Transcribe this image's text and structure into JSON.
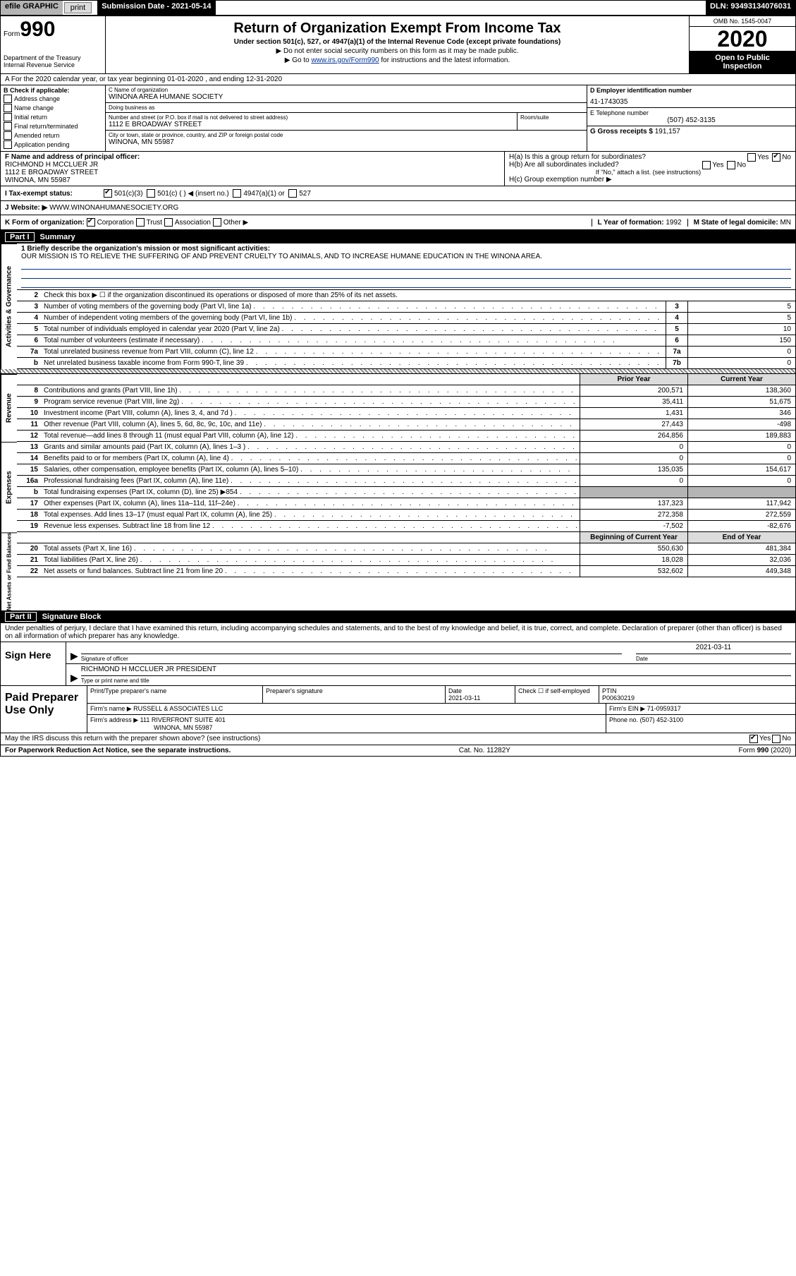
{
  "topbar": {
    "efile": "efile GRAPHIC",
    "print": "print",
    "subdate_label": "Submission Date - 2021-05-14",
    "dln": "DLN: 93493134076031"
  },
  "header": {
    "form_prefix": "Form",
    "form_no": "990",
    "title": "Return of Organization Exempt From Income Tax",
    "sub1": "Under section 501(c), 527, or 4947(a)(1) of the Internal Revenue Code (except private foundations)",
    "sub2": "▶ Do not enter social security numbers on this form as it may be made public.",
    "sub3_prefix": "▶ Go to ",
    "sub3_link": "www.irs.gov/Form990",
    "sub3_suffix": " for instructions and the latest information.",
    "dept1": "Department of the Treasury",
    "dept2": "Internal Revenue Service",
    "omb": "OMB No. 1545-0047",
    "year": "2020",
    "inspect1": "Open to Public",
    "inspect2": "Inspection"
  },
  "row_a": "A For the 2020 calendar year, or tax year beginning 01-01-2020    , and ending 12-31-2020",
  "block_b": {
    "label": "B Check if applicable:",
    "opts": [
      "Address change",
      "Name change",
      "Initial return",
      "Final return/terminated",
      "Amended return",
      "Application pending"
    ]
  },
  "block_c": {
    "name_lbl": "C Name of organization",
    "name": "WINONA AREA HUMANE SOCIETY",
    "dba_lbl": "Doing business as",
    "dba": "",
    "addr_lbl": "Number and street (or P.O. box if mail is not delivered to street address)",
    "addr": "1112 E BROADWAY STREET",
    "room_lbl": "Room/suite",
    "room": "",
    "city_lbl": "City or town, state or province, country, and ZIP or foreign postal code",
    "city": "WINONA, MN  55987"
  },
  "block_d": {
    "lbl": "D Employer identification number",
    "val": "41-1743035"
  },
  "block_e": {
    "lbl": "E Telephone number",
    "val": "(507) 452-3135"
  },
  "block_g": {
    "lbl": "G Gross receipts $",
    "val": "191,157"
  },
  "block_f": {
    "lbl": "F  Name and address of principal officer:",
    "name": "RICHMOND H MCCLUER JR",
    "addr1": "1112 E BROADWAY STREET",
    "addr2": "WINONA, MN  55987"
  },
  "block_h": {
    "ha": "H(a)  Is this a group return for subordinates?",
    "ha_yes": "Yes",
    "ha_no": "No",
    "hb": "H(b)  Are all subordinates included?",
    "hb_yes": "Yes",
    "hb_no": "No",
    "hb_note": "If \"No,\" attach a list. (see instructions)",
    "hc": "H(c)  Group exemption number ▶"
  },
  "row_i": {
    "lbl": "I  Tax-exempt status:",
    "o1": "501(c)(3)",
    "o2": "501(c) (  ) ◀ (insert no.)",
    "o3": "4947(a)(1) or",
    "o4": "527"
  },
  "row_j": {
    "lbl": "J  Website: ▶",
    "val": "WWW.WINONAHUMANESOCIETY.ORG"
  },
  "row_k": {
    "lbl": "K Form of organization:",
    "o1": "Corporation",
    "o2": "Trust",
    "o3": "Association",
    "o4": "Other ▶",
    "l_lbl": "L Year of formation:",
    "l_val": "1992",
    "m_lbl": "M State of legal domicile:",
    "m_val": "MN"
  },
  "part1": {
    "header": "Part I",
    "title": "Summary",
    "mission_lbl": "1  Briefly describe the organization's mission or most significant activities:",
    "mission": "OUR MISSION IS TO RELIEVE THE SUFFERING OF AND PREVENT CRUELTY TO ANIMALS, AND TO INCREASE HUMANE EDUCATION IN THE WINONA AREA.",
    "line2": "Check this box ▶ ☐  if the organization discontinued its operations or disposed of more than 25% of its net assets.",
    "gov_lines": [
      {
        "n": "3",
        "d": "Number of voting members of the governing body (Part VI, line 1a)",
        "box": "3",
        "v": "5"
      },
      {
        "n": "4",
        "d": "Number of independent voting members of the governing body (Part VI, line 1b)",
        "box": "4",
        "v": "5"
      },
      {
        "n": "5",
        "d": "Total number of individuals employed in calendar year 2020 (Part V, line 2a)",
        "box": "5",
        "v": "10"
      },
      {
        "n": "6",
        "d": "Total number of volunteers (estimate if necessary)",
        "box": "6",
        "v": "150"
      },
      {
        "n": "7a",
        "d": "Total unrelated business revenue from Part VIII, column (C), line 12",
        "box": "7a",
        "v": "0"
      },
      {
        "n": "b",
        "d": "Net unrelated business taxable income from Form 990-T, line 39",
        "box": "7b",
        "v": "0"
      }
    ],
    "py_lbl": "Prior Year",
    "cy_lbl": "Current Year",
    "rev_lines": [
      {
        "n": "8",
        "d": "Contributions and grants (Part VIII, line 1h)",
        "py": "200,571",
        "cy": "138,360"
      },
      {
        "n": "9",
        "d": "Program service revenue (Part VIII, line 2g)",
        "py": "35,411",
        "cy": "51,675"
      },
      {
        "n": "10",
        "d": "Investment income (Part VIII, column (A), lines 3, 4, and 7d )",
        "py": "1,431",
        "cy": "346"
      },
      {
        "n": "11",
        "d": "Other revenue (Part VIII, column (A), lines 5, 6d, 8c, 9c, 10c, and 11e)",
        "py": "27,443",
        "cy": "-498"
      },
      {
        "n": "12",
        "d": "Total revenue—add lines 8 through 11 (must equal Part VIII, column (A), line 12)",
        "py": "264,856",
        "cy": "189,883"
      }
    ],
    "exp_lines": [
      {
        "n": "13",
        "d": "Grants and similar amounts paid (Part IX, column (A), lines 1–3 )",
        "py": "0",
        "cy": "0"
      },
      {
        "n": "14",
        "d": "Benefits paid to or for members (Part IX, column (A), line 4)",
        "py": "0",
        "cy": "0"
      },
      {
        "n": "15",
        "d": "Salaries, other compensation, employee benefits (Part IX, column (A), lines 5–10)",
        "py": "135,035",
        "cy": "154,617"
      },
      {
        "n": "16a",
        "d": "Professional fundraising fees (Part IX, column (A), line 11e)",
        "py": "0",
        "cy": "0"
      },
      {
        "n": "b",
        "d": "Total fundraising expenses (Part IX, column (D), line 25) ▶854",
        "py": "",
        "cy": "",
        "shaded": true
      },
      {
        "n": "17",
        "d": "Other expenses (Part IX, column (A), lines 11a–11d, 11f–24e)",
        "py": "137,323",
        "cy": "117,942"
      },
      {
        "n": "18",
        "d": "Total expenses. Add lines 13–17 (must equal Part IX, column (A), line 25)",
        "py": "272,358",
        "cy": "272,559"
      },
      {
        "n": "19",
        "d": "Revenue less expenses. Subtract line 18 from line 12",
        "py": "-7,502",
        "cy": "-82,676"
      }
    ],
    "bocy_lbl": "Beginning of Current Year",
    "eoy_lbl": "End of Year",
    "net_lines": [
      {
        "n": "20",
        "d": "Total assets (Part X, line 16)",
        "py": "550,630",
        "cy": "481,384"
      },
      {
        "n": "21",
        "d": "Total liabilities (Part X, line 26)",
        "py": "18,028",
        "cy": "32,036"
      },
      {
        "n": "22",
        "d": "Net assets or fund balances. Subtract line 21 from line 20",
        "py": "532,602",
        "cy": "449,348"
      }
    ]
  },
  "part2": {
    "header": "Part II",
    "title": "Signature Block",
    "perjury": "Under penalties of perjury, I declare that I have examined this return, including accompanying schedules and statements, and to the best of my knowledge and belief, it is true, correct, and complete. Declaration of preparer (other than officer) is based on all information of which preparer has any knowledge.",
    "sign_here": "Sign Here",
    "sig_officer_lbl": "Signature of officer",
    "sig_date_lbl": "Date",
    "sig_date": "2021-03-11",
    "sig_name": "RICHMOND H MCCLUER JR  PRESIDENT",
    "sig_name_lbl": "Type or print name and title",
    "paid": "Paid Preparer Use Only",
    "prep_name_lbl": "Print/Type preparer's name",
    "prep_sig_lbl": "Preparer's signature",
    "prep_date_lbl": "Date",
    "prep_date": "2021-03-11",
    "prep_check_lbl": "Check ☐ if self-employed",
    "ptin_lbl": "PTIN",
    "ptin": "P00630219",
    "firm_name_lbl": "Firm's name    ▶",
    "firm_name": "RUSSELL & ASSOCIATES LLC",
    "firm_ein_lbl": "Firm's EIN ▶",
    "firm_ein": "71-0959317",
    "firm_addr_lbl": "Firm's address ▶",
    "firm_addr1": "111 RIVERFRONT SUITE 401",
    "firm_addr2": "WINONA, MN  55987",
    "firm_phone_lbl": "Phone no.",
    "firm_phone": "(507) 452-3100",
    "discuss": "May the IRS discuss this return with the preparer shown above? (see instructions)",
    "discuss_yes": "Yes",
    "discuss_no": "No"
  },
  "footer": {
    "pra": "For Paperwork Reduction Act Notice, see the separate instructions.",
    "cat": "Cat. No. 11282Y",
    "form": "Form 990 (2020)"
  },
  "sides": {
    "gov": "Activities & Governance",
    "rev": "Revenue",
    "exp": "Expenses",
    "net": "Net Assets or Fund Balances"
  }
}
